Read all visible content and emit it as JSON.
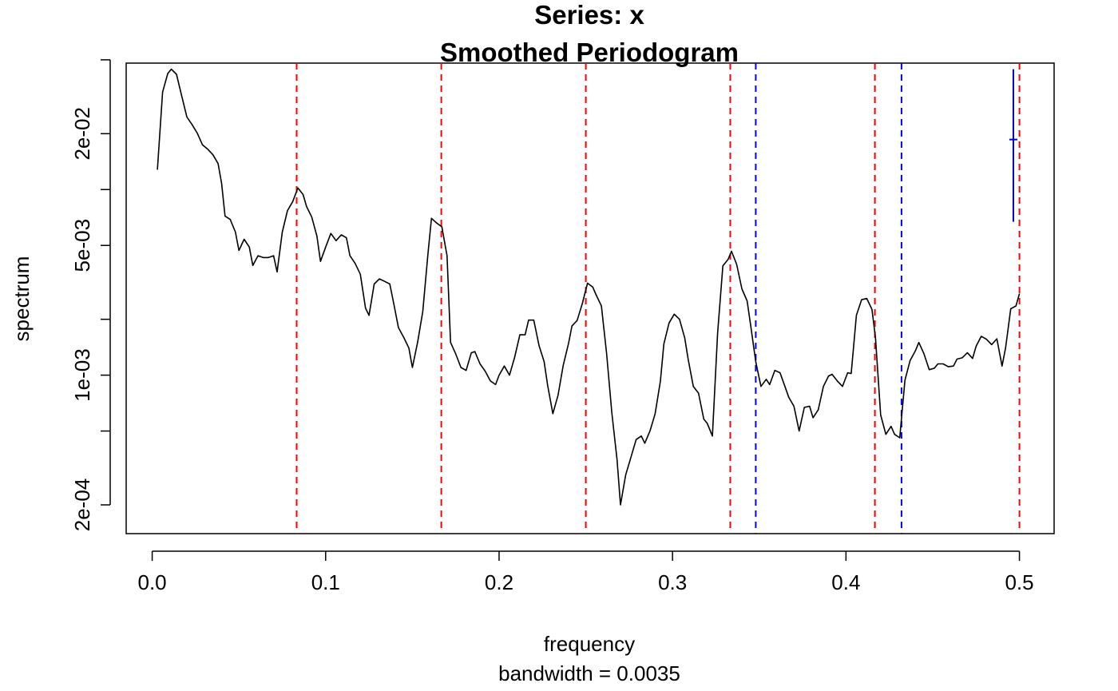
{
  "chart_data": {
    "type": "line",
    "title_line1": "Series: x",
    "title_line2": "Smoothed Periodogram",
    "xlabel": "frequency",
    "xsublabel": "bandwidth = 0.0035",
    "ylabel": "spectrum",
    "xlim": [
      -0.015,
      0.52
    ],
    "ylim_log": [
      0.00014,
      0.048
    ],
    "yscale": "log",
    "x_ticks": [
      {
        "value": 0.0,
        "label": "0.0"
      },
      {
        "value": 0.1,
        "label": "0.1"
      },
      {
        "value": 0.2,
        "label": "0.2"
      },
      {
        "value": 0.3,
        "label": "0.3"
      },
      {
        "value": 0.4,
        "label": "0.4"
      },
      {
        "value": 0.5,
        "label": "0.5"
      }
    ],
    "y_ticks": [
      {
        "value": 0.0002,
        "label": "2e-04"
      },
      {
        "value": 0.0005,
        "label": ""
      },
      {
        "value": 0.001,
        "label": "1e-03"
      },
      {
        "value": 0.002,
        "label": ""
      },
      {
        "value": 0.005,
        "label": "5e-03"
      },
      {
        "value": 0.01,
        "label": ""
      },
      {
        "value": 0.02,
        "label": "2e-02"
      },
      {
        "value": 0.05,
        "label": ""
      }
    ],
    "series": [
      {
        "color": "#000000",
        "points": [
          [
            0.003,
            0.0128
          ],
          [
            0.006,
            0.0335
          ],
          [
            0.009,
            0.0422
          ],
          [
            0.011,
            0.0445
          ],
          [
            0.014,
            0.0418
          ],
          [
            0.017,
            0.032
          ],
          [
            0.02,
            0.0246
          ],
          [
            0.023,
            0.0224
          ],
          [
            0.026,
            0.0201
          ],
          [
            0.029,
            0.0174
          ],
          [
            0.032,
            0.0165
          ],
          [
            0.035,
            0.0154
          ],
          [
            0.038,
            0.0138
          ],
          [
            0.04,
            0.0108
          ],
          [
            0.042,
            0.0072
          ],
          [
            0.045,
            0.0069
          ],
          [
            0.048,
            0.0059
          ],
          [
            0.05,
            0.0047
          ],
          [
            0.053,
            0.0054
          ],
          [
            0.056,
            0.0049
          ],
          [
            0.058,
            0.0039
          ],
          [
            0.061,
            0.0044
          ],
          [
            0.064,
            0.0043
          ],
          [
            0.067,
            0.0043
          ],
          [
            0.07,
            0.0044
          ],
          [
            0.072,
            0.0036
          ],
          [
            0.075,
            0.0059
          ],
          [
            0.078,
            0.0077
          ],
          [
            0.081,
            0.0086
          ],
          [
            0.084,
            0.0102
          ],
          [
            0.087,
            0.0094
          ],
          [
            0.089,
            0.0081
          ],
          [
            0.092,
            0.0071
          ],
          [
            0.095,
            0.0056
          ],
          [
            0.097,
            0.0041
          ],
          [
            0.1,
            0.0049
          ],
          [
            0.103,
            0.0058
          ],
          [
            0.106,
            0.0053
          ],
          [
            0.109,
            0.0057
          ],
          [
            0.112,
            0.0055
          ],
          [
            0.114,
            0.0044
          ],
          [
            0.117,
            0.004
          ],
          [
            0.12,
            0.0035
          ],
          [
            0.123,
            0.0023
          ],
          [
            0.125,
            0.0021
          ],
          [
            0.128,
            0.0031
          ],
          [
            0.131,
            0.0033
          ],
          [
            0.134,
            0.0032
          ],
          [
            0.137,
            0.0031
          ],
          [
            0.139,
            0.0025
          ],
          [
            0.142,
            0.0018
          ],
          [
            0.145,
            0.0016
          ],
          [
            0.148,
            0.0014
          ],
          [
            0.15,
            0.0011
          ],
          [
            0.153,
            0.0015
          ],
          [
            0.156,
            0.0022
          ],
          [
            0.159,
            0.0045
          ],
          [
            0.161,
            0.007
          ],
          [
            0.164,
            0.0066
          ],
          [
            0.167,
            0.0063
          ],
          [
            0.17,
            0.0044
          ],
          [
            0.172,
            0.0015
          ],
          [
            0.175,
            0.0013
          ],
          [
            0.178,
            0.0011
          ],
          [
            0.181,
            0.00106
          ],
          [
            0.184,
            0.00132
          ],
          [
            0.186,
            0.00134
          ],
          [
            0.189,
            0.00115
          ],
          [
            0.192,
            0.00105
          ],
          [
            0.195,
            0.00093
          ],
          [
            0.198,
            0.00089
          ],
          [
            0.2,
            0.001
          ],
          [
            0.203,
            0.00112
          ],
          [
            0.206,
            0.001
          ],
          [
            0.209,
            0.00125
          ],
          [
            0.212,
            0.00165
          ],
          [
            0.215,
            0.00165
          ],
          [
            0.217,
            0.00198
          ],
          [
            0.22,
            0.00198
          ],
          [
            0.223,
            0.00145
          ],
          [
            0.226,
            0.00118
          ],
          [
            0.228,
            0.00088
          ],
          [
            0.231,
            0.00062
          ],
          [
            0.234,
            0.00078
          ],
          [
            0.237,
            0.00113
          ],
          [
            0.24,
            0.00148
          ],
          [
            0.242,
            0.00184
          ],
          [
            0.245,
            0.00197
          ],
          [
            0.248,
            0.00243
          ],
          [
            0.251,
            0.00313
          ],
          [
            0.254,
            0.00298
          ],
          [
            0.256,
            0.0027
          ],
          [
            0.259,
            0.00236
          ],
          [
            0.262,
            0.00131
          ],
          [
            0.265,
            0.00063
          ],
          [
            0.268,
            0.00035
          ],
          [
            0.27,
            0.0002
          ],
          [
            0.273,
            0.00029
          ],
          [
            0.276,
            0.00036
          ],
          [
            0.279,
            0.00045
          ],
          [
            0.282,
            0.00047
          ],
          [
            0.284,
            0.00043
          ],
          [
            0.287,
            0.0005
          ],
          [
            0.29,
            0.00062
          ],
          [
            0.293,
            0.00093
          ],
          [
            0.295,
            0.00147
          ],
          [
            0.298,
            0.00191
          ],
          [
            0.301,
            0.00213
          ],
          [
            0.304,
            0.002
          ],
          [
            0.307,
            0.00159
          ],
          [
            0.309,
            0.00122
          ],
          [
            0.312,
            0.00087
          ],
          [
            0.315,
            0.0008
          ],
          [
            0.318,
            0.00058
          ],
          [
            0.32,
            0.00055
          ],
          [
            0.323,
            0.00047
          ],
          [
            0.326,
            0.00168
          ],
          [
            0.329,
            0.00388
          ],
          [
            0.332,
            0.0042
          ],
          [
            0.334,
            0.00465
          ],
          [
            0.337,
            0.00395
          ],
          [
            0.34,
            0.00292
          ],
          [
            0.343,
            0.00251
          ],
          [
            0.345,
            0.00187
          ],
          [
            0.348,
            0.00118
          ],
          [
            0.351,
            0.00087
          ],
          [
            0.354,
            0.00095
          ],
          [
            0.356,
            0.00089
          ],
          [
            0.359,
            0.00106
          ],
          [
            0.362,
            0.00103
          ],
          [
            0.365,
            0.00086
          ],
          [
            0.367,
            0.00076
          ],
          [
            0.37,
            0.00068
          ],
          [
            0.373,
            0.0005
          ],
          [
            0.376,
            0.00067
          ],
          [
            0.379,
            0.00068
          ],
          [
            0.381,
            0.00059
          ],
          [
            0.384,
            0.00065
          ],
          [
            0.387,
            0.00087
          ],
          [
            0.39,
            0.00099
          ],
          [
            0.392,
            0.00101
          ],
          [
            0.395,
            0.00093
          ],
          [
            0.398,
            0.00087
          ],
          [
            0.401,
            0.00103
          ],
          [
            0.403,
            0.00102
          ],
          [
            0.406,
            0.0021
          ],
          [
            0.409,
            0.00255
          ],
          [
            0.412,
            0.00259
          ],
          [
            0.415,
            0.00226
          ],
          [
            0.417,
            0.00159
          ],
          [
            0.42,
            0.00061
          ],
          [
            0.423,
            0.00048
          ],
          [
            0.426,
            0.00053
          ],
          [
            0.428,
            0.00048
          ],
          [
            0.431,
            0.00046
          ],
          [
            0.434,
            0.00094
          ],
          [
            0.437,
            0.0012
          ],
          [
            0.44,
            0.00135
          ],
          [
            0.442,
            0.0015
          ],
          [
            0.445,
            0.0013
          ],
          [
            0.448,
            0.00107
          ],
          [
            0.451,
            0.00109
          ],
          [
            0.453,
            0.00115
          ],
          [
            0.456,
            0.00115
          ],
          [
            0.459,
            0.00111
          ],
          [
            0.462,
            0.00112
          ],
          [
            0.464,
            0.00122
          ],
          [
            0.467,
            0.00124
          ],
          [
            0.47,
            0.00132
          ],
          [
            0.473,
            0.00123
          ],
          [
            0.475,
            0.00143
          ],
          [
            0.478,
            0.00162
          ],
          [
            0.481,
            0.00156
          ],
          [
            0.484,
            0.00146
          ],
          [
            0.487,
            0.00157
          ],
          [
            0.49,
            0.00112
          ],
          [
            0.492,
            0.0014
          ],
          [
            0.495,
            0.00228
          ],
          [
            0.498,
            0.00236
          ],
          [
            0.5,
            0.00275
          ]
        ]
      }
    ],
    "reference_lines": [
      {
        "x": 0.0833,
        "color": "#ff0000"
      },
      {
        "x": 0.1667,
        "color": "#ff0000"
      },
      {
        "x": 0.25,
        "color": "#ff0000"
      },
      {
        "x": 0.3333,
        "color": "#ff0000"
      },
      {
        "x": 0.4167,
        "color": "#ff0000"
      },
      {
        "x": 0.5,
        "color": "#ff0000"
      },
      {
        "x": 0.348,
        "color": "#0000ff"
      },
      {
        "x": 0.432,
        "color": "#0000ff"
      }
    ],
    "ci_bar": {
      "x": 0.4965,
      "low": 0.0067,
      "center": 0.0186,
      "high": 0.0445,
      "color": "#0000cc"
    }
  }
}
